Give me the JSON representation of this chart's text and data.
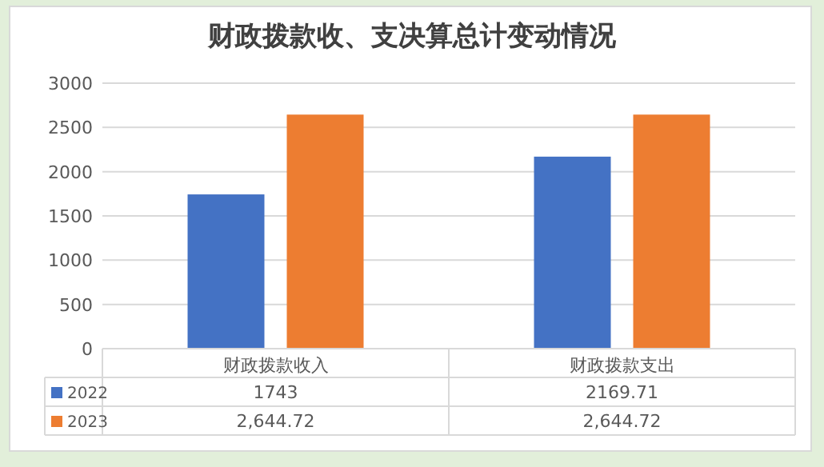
{
  "chart_data": {
    "type": "bar",
    "title": "财政拨款收、支决算总计变动情况",
    "categories": [
      "财政拨款收入",
      "财政拨款支出"
    ],
    "series": [
      {
        "name": "2022",
        "color": "#4472c4",
        "values": [
          1743,
          2169.71
        ],
        "value_labels": [
          "1743",
          "2169.71"
        ]
      },
      {
        "name": "2023",
        "color": "#ed7d31",
        "values": [
          2644.72,
          2644.72
        ],
        "value_labels": [
          "2,644.72",
          "2,644.72"
        ]
      }
    ],
    "ylim": [
      0,
      3000
    ],
    "yticks": [
      0,
      500,
      1000,
      1500,
      2000,
      2500,
      3000
    ],
    "grid": "y",
    "legend": "bottom"
  }
}
